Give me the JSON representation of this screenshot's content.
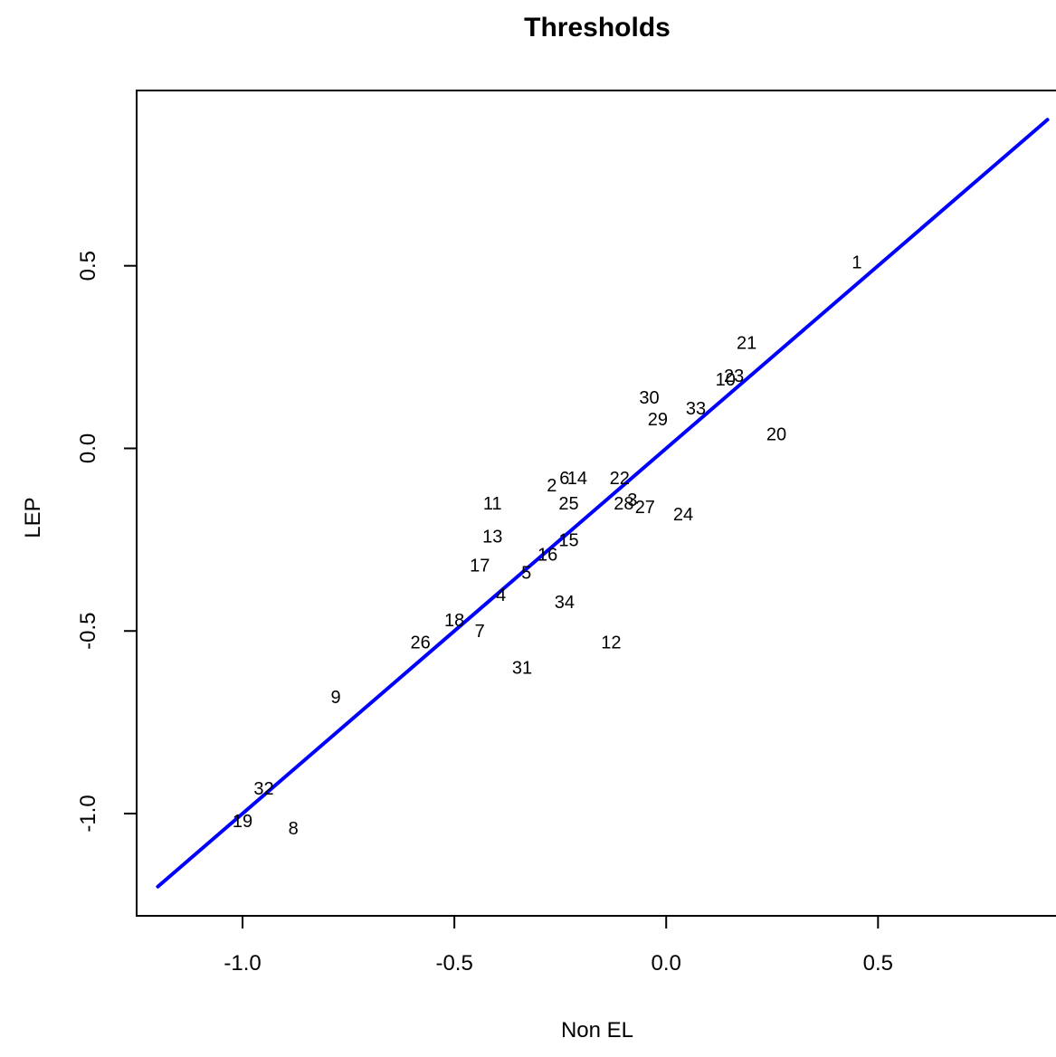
{
  "chart_data": {
    "type": "scatter",
    "title": "Thresholds",
    "xlabel": "Non EL",
    "ylabel": "LEP",
    "xlim": [
      -1.25,
      0.95
    ],
    "ylim": [
      -1.28,
      0.98
    ],
    "x_ticks": [
      {
        "value": -1.0,
        "label": "-1.0"
      },
      {
        "value": -0.5,
        "label": "-0.5"
      },
      {
        "value": 0.0,
        "label": "0.0"
      },
      {
        "value": 0.5,
        "label": "0.5"
      }
    ],
    "y_ticks": [
      {
        "value": -1.0,
        "label": "-1.0"
      },
      {
        "value": -0.5,
        "label": "-0.5"
      },
      {
        "value": 0.0,
        "label": "0.0"
      },
      {
        "value": 0.5,
        "label": "0.5"
      }
    ],
    "grid": false,
    "points": [
      {
        "label": "1",
        "x": 0.45,
        "y": 0.51
      },
      {
        "label": "2",
        "x": -0.27,
        "y": -0.1
      },
      {
        "label": "3",
        "x": -0.08,
        "y": -0.14
      },
      {
        "label": "4",
        "x": -0.39,
        "y": -0.4
      },
      {
        "label": "5",
        "x": -0.33,
        "y": -0.34
      },
      {
        "label": "6",
        "x": -0.24,
        "y": -0.08
      },
      {
        "label": "7",
        "x": -0.44,
        "y": -0.5
      },
      {
        "label": "8",
        "x": -0.88,
        "y": -1.04
      },
      {
        "label": "9",
        "x": -0.78,
        "y": -0.68
      },
      {
        "label": "10",
        "x": 0.14,
        "y": 0.19
      },
      {
        "label": "11",
        "x": -0.41,
        "y": -0.15
      },
      {
        "label": "12",
        "x": -0.13,
        "y": -0.53
      },
      {
        "label": "13",
        "x": -0.41,
        "y": -0.24
      },
      {
        "label": "14",
        "x": -0.21,
        "y": -0.08
      },
      {
        "label": "15",
        "x": -0.23,
        "y": -0.25
      },
      {
        "label": "16",
        "x": -0.28,
        "y": -0.29
      },
      {
        "label": "17",
        "x": -0.44,
        "y": -0.32
      },
      {
        "label": "18",
        "x": -0.5,
        "y": -0.47
      },
      {
        "label": "19",
        "x": -1.0,
        "y": -1.02
      },
      {
        "label": "20",
        "x": 0.26,
        "y": 0.04
      },
      {
        "label": "21",
        "x": 0.19,
        "y": 0.29
      },
      {
        "label": "22",
        "x": -0.11,
        "y": -0.08
      },
      {
        "label": "23",
        "x": 0.16,
        "y": 0.2
      },
      {
        "label": "24",
        "x": 0.04,
        "y": -0.18
      },
      {
        "label": "25",
        "x": -0.23,
        "y": -0.15
      },
      {
        "label": "26",
        "x": -0.58,
        "y": -0.53
      },
      {
        "label": "27",
        "x": -0.05,
        "y": -0.16
      },
      {
        "label": "28",
        "x": -0.1,
        "y": -0.15
      },
      {
        "label": "29",
        "x": -0.02,
        "y": 0.08
      },
      {
        "label": "30",
        "x": -0.04,
        "y": 0.14
      },
      {
        "label": "31",
        "x": -0.34,
        "y": -0.6
      },
      {
        "label": "32",
        "x": -0.95,
        "y": -0.93
      },
      {
        "label": "33",
        "x": 0.07,
        "y": 0.11
      },
      {
        "label": "34",
        "x": -0.24,
        "y": -0.42
      }
    ],
    "reference_line": {
      "color": "#0000ff",
      "x": [
        -1.2,
        0.9
      ],
      "y": [
        -1.2,
        0.9
      ]
    }
  }
}
